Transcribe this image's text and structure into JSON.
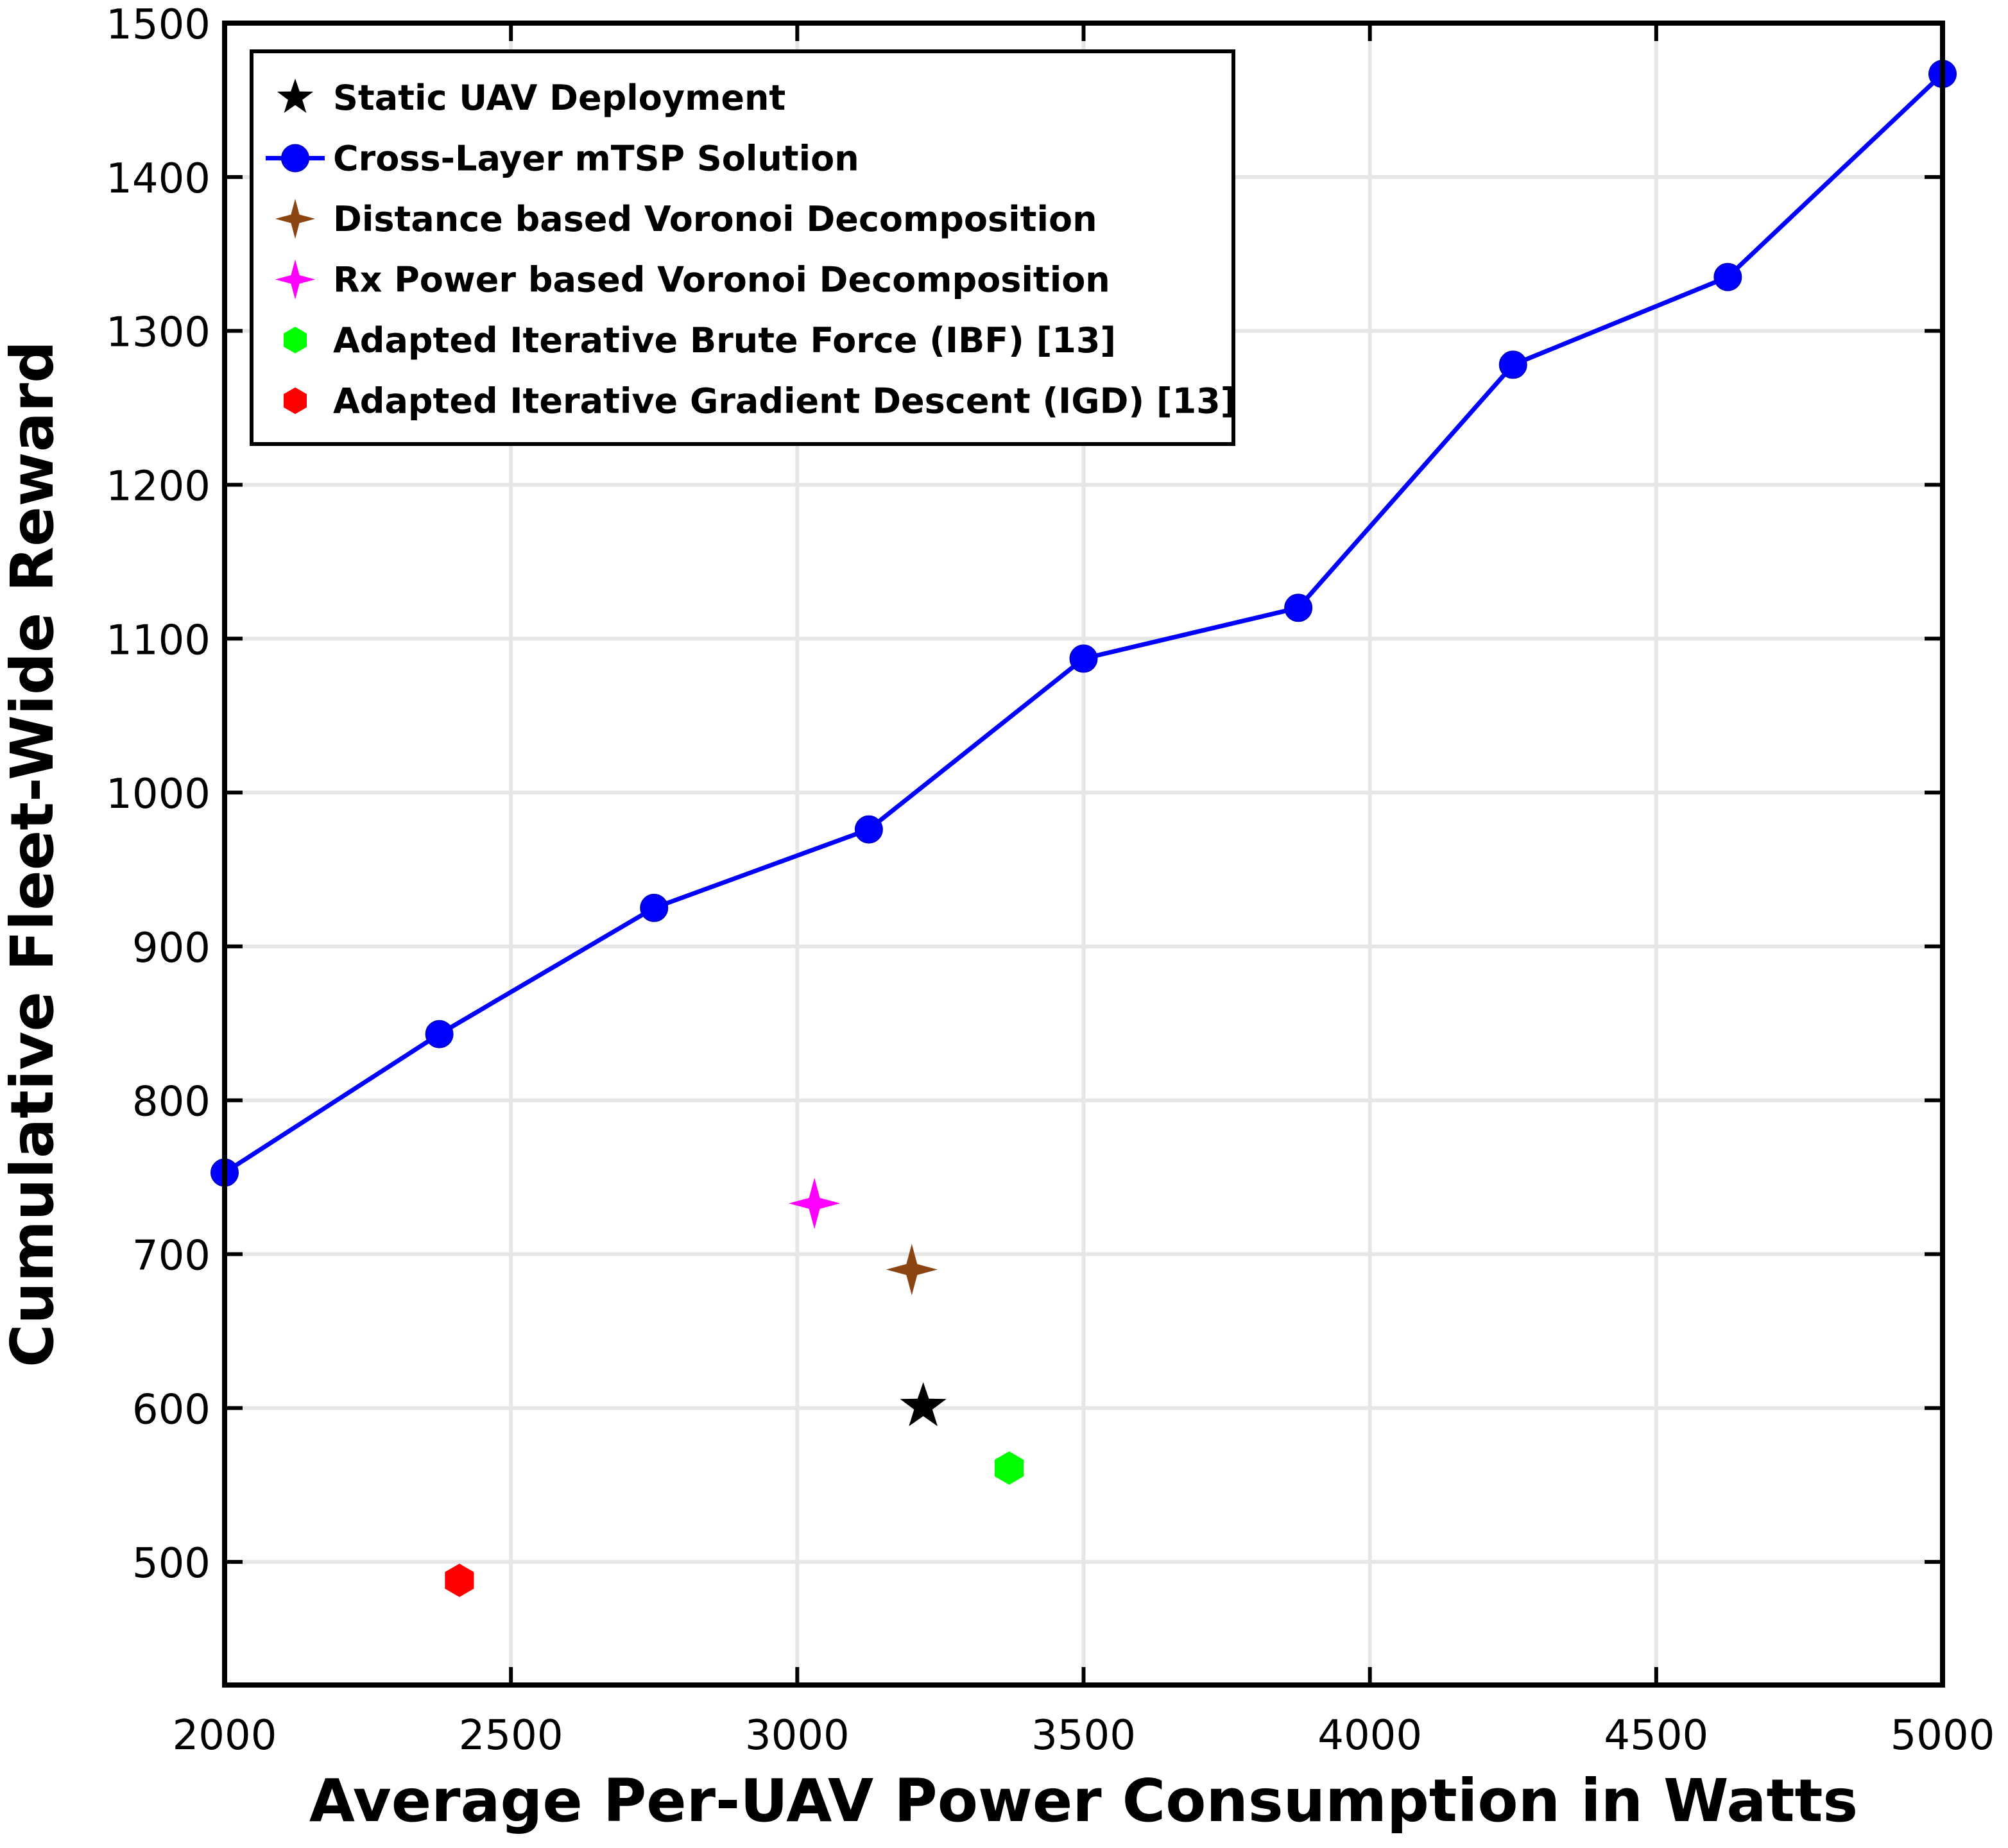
{
  "chart_data": {
    "type": "scatter",
    "xlabel": "Average Per-UAV Power Consumption in Watts",
    "ylabel": "Cumulative Fleet-Wide Reward",
    "xlim": [
      2000,
      5000
    ],
    "ylim": [
      420,
      1500
    ],
    "xticks": [
      "2000",
      "2500",
      "3000",
      "3500",
      "4000",
      "4500",
      "5000"
    ],
    "yticks": [
      "500",
      "600",
      "700",
      "800",
      "900",
      "1000",
      "1100",
      "1200",
      "1300",
      "1400",
      "1500"
    ],
    "grid": true,
    "legend_position": "top-left",
    "series": [
      {
        "name": "Static UAV Deployment",
        "marker": "star5",
        "color": "#000000",
        "line": false,
        "points": [
          [
            3220,
            601
          ]
        ]
      },
      {
        "name": "Cross-Layer mTSP Solution",
        "marker": "circle",
        "color": "#0000ff",
        "line": true,
        "points": [
          [
            2000,
            753
          ],
          [
            2375,
            843
          ],
          [
            2750,
            925
          ],
          [
            3125,
            976
          ],
          [
            3500,
            1087
          ],
          [
            3875,
            1120
          ],
          [
            4250,
            1278
          ],
          [
            4625,
            1335
          ],
          [
            5000,
            1467
          ]
        ]
      },
      {
        "name": "Distance based Voronoi Decomposition",
        "marker": "star4",
        "color": "#8b4513",
        "line": false,
        "points": [
          [
            3200,
            690
          ]
        ]
      },
      {
        "name": "Rx Power based Voronoi Decomposition",
        "marker": "star4",
        "color": "#ff00ff",
        "line": false,
        "points": [
          [
            3030,
            733
          ]
        ]
      },
      {
        "name": "Adapted Iterative Brute Force (IBF) [13]",
        "marker": "hexagon",
        "color": "#00ff00",
        "line": false,
        "points": [
          [
            3370,
            561
          ]
        ]
      },
      {
        "name": "Adapted Iterative Gradient Descent (IGD) [13]",
        "marker": "hexagon",
        "color": "#ff0000",
        "line": false,
        "points": [
          [
            2410,
            488
          ]
        ]
      }
    ]
  }
}
